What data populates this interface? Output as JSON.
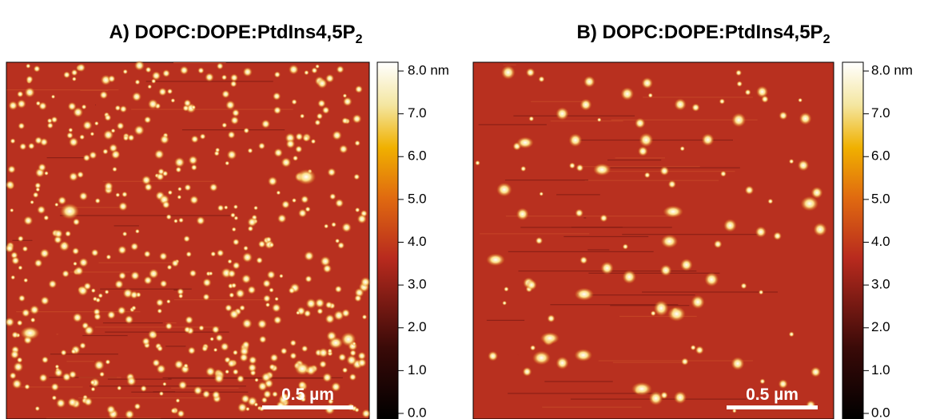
{
  "panels": [
    {
      "title": "A) DOPC:DOPE:PtdIns4,5P",
      "title_subscript": "2",
      "colorbar_ticks": [
        "8.0 nm",
        "7.0",
        "6.0",
        "5.0",
        "4.0",
        "3.0",
        "2.0",
        "1.0",
        "0.0"
      ],
      "scale_bar": "0.5 µm"
    },
    {
      "title": "B) DOPC:DOPE:PtdIns4,5P",
      "title_subscript": "2",
      "colorbar_ticks": [
        "8.0 nm",
        "7.0",
        "6.0",
        "5.0",
        "4.0",
        "3.0",
        "2.0",
        "1.0",
        "0.0"
      ],
      "scale_bar": "0.5 µm"
    }
  ]
}
